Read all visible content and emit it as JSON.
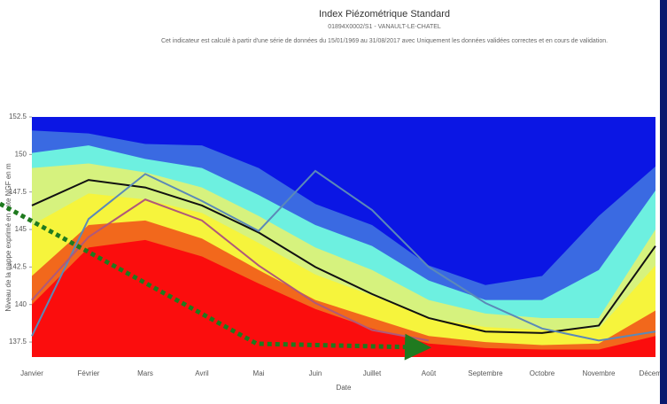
{
  "chart_data": {
    "type": "area",
    "title": "Index Piézométrique Standard",
    "subtitle": "01894X0002/S1 - VANAULT-LE-CHATEL",
    "note": "Cet indicateur est calculé à partir d'une série de données du 15/01/1969 au 31/08/2017 avec Uniquement les données validées correctes et en cours de validation.",
    "y_label": "Niveau de la nappe exprimé en cote NGF en m",
    "x_label": "Date",
    "categories": [
      "Janvier",
      "Février",
      "Mars",
      "Avril",
      "Mai",
      "Juin",
      "Juillet",
      "Août",
      "Septembre",
      "Octobre",
      "Novembre",
      "Décembre"
    ],
    "ylim": [
      136.5,
      152.5
    ],
    "yticks": [
      137.5,
      140,
      142.5,
      145,
      147.5,
      150,
      152.5
    ],
    "plot_background": "#0b16e4",
    "bands": [
      {
        "color": "#3a6ae2",
        "values": [
          151.6,
          151.4,
          150.7,
          150.6,
          149.1,
          146.7,
          145.3,
          142.6,
          141.3,
          141.9,
          145.9,
          149.2
        ]
      },
      {
        "color": "#6df0e0",
        "values": [
          150.1,
          150.6,
          149.7,
          149.1,
          147.3,
          145.3,
          143.9,
          141.6,
          140.3,
          140.3,
          142.3,
          147.6
        ]
      },
      {
        "color": "#d6f27e",
        "values": [
          149.1,
          149.4,
          148.8,
          147.8,
          145.9,
          143.8,
          142.3,
          140.3,
          139.4,
          139.1,
          139.1,
          145.0
        ]
      },
      {
        "color": "#f6f43c",
        "values": [
          145.3,
          147.4,
          147.0,
          146.1,
          144.1,
          142.0,
          140.6,
          139.1,
          138.5,
          138.3,
          138.4,
          142.6
        ]
      },
      {
        "color": "#f2681c",
        "values": [
          141.9,
          145.3,
          145.6,
          144.4,
          142.3,
          140.3,
          139.1,
          137.9,
          137.5,
          137.3,
          137.4,
          139.6
        ]
      },
      {
        "color": "#fb0d0d",
        "values": [
          140.0,
          143.8,
          144.3,
          143.2,
          141.4,
          139.7,
          138.4,
          137.4,
          137.1,
          137.0,
          137.0,
          137.9
        ]
      }
    ],
    "lines": [
      {
        "color": "#111111",
        "values": [
          146.6,
          148.3,
          147.8,
          146.6,
          144.8,
          142.5,
          140.7,
          139.1,
          138.2,
          138.1,
          138.6,
          143.9
        ]
      },
      {
        "color": "#5b89b8",
        "values": [
          137.9,
          145.7,
          148.7,
          146.9,
          144.9,
          148.9,
          146.3,
          142.5,
          140.1,
          138.4,
          137.6,
          138.2
        ]
      },
      {
        "color": "#b0587a",
        "values": [
          140.3,
          144.5,
          147.0,
          145.6,
          142.6,
          140.1,
          138.3,
          137.6,
          null,
          null,
          null,
          null
        ]
      }
    ]
  }
}
